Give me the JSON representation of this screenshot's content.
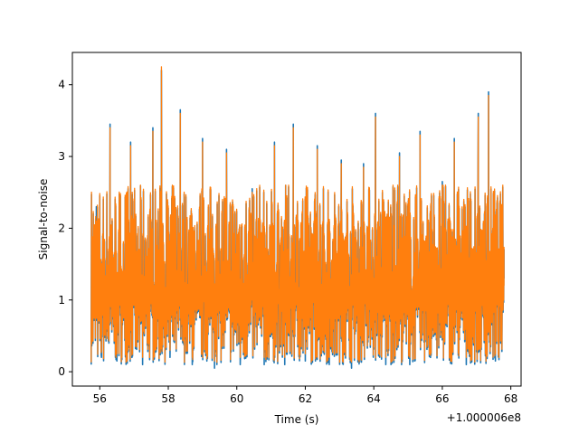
{
  "chart_data": {
    "type": "line",
    "title": "",
    "xlabel": "Time (s)",
    "ylabel": "Signal-to-noise",
    "x_offset_label": "+1.000006e8",
    "xlim": [
      55.2,
      68.3
    ],
    "ylim": [
      -0.2,
      4.45
    ],
    "xticks": [
      56,
      58,
      60,
      62,
      64,
      66,
      68
    ],
    "yticks": [
      0,
      1,
      2,
      3,
      4
    ],
    "grid": false,
    "legend": "none",
    "series": [
      {
        "color": "#1f77b4",
        "x": [
          55.75,
          55.9,
          56.05,
          56.3,
          56.5,
          56.9,
          57.25,
          57.55,
          57.8,
          58.05,
          58.35,
          58.7,
          59.0,
          59.35,
          59.7,
          60.1,
          60.45,
          60.8,
          61.1,
          61.4,
          61.65,
          62.0,
          62.35,
          62.7,
          63.05,
          63.35,
          63.7,
          64.05,
          64.35,
          64.75,
          65.05,
          65.35,
          65.65,
          66.0,
          66.35,
          66.7,
          67.05,
          67.35,
          67.55,
          67.8
        ],
        "values": [
          0.3,
          2.3,
          0.2,
          3.45,
          0.15,
          3.2,
          0.1,
          3.4,
          4.2,
          0.2,
          3.65,
          0.1,
          3.25,
          0.05,
          3.1,
          0.1,
          2.55,
          0.1,
          3.2,
          0.1,
          3.45,
          0.15,
          3.15,
          0.1,
          2.95,
          0.05,
          2.9,
          3.6,
          0.1,
          3.05,
          0.1,
          3.35,
          0.2,
          2.65,
          3.25,
          0.1,
          3.6,
          3.9,
          0.15,
          1.3
        ]
      },
      {
        "color": "#ff7f0e",
        "x": [
          55.75,
          55.9,
          56.05,
          56.3,
          56.5,
          56.9,
          57.25,
          57.55,
          57.8,
          58.05,
          58.35,
          58.7,
          59.0,
          59.35,
          59.7,
          60.1,
          60.45,
          60.8,
          61.1,
          61.4,
          61.65,
          62.0,
          62.35,
          62.7,
          63.05,
          63.35,
          63.7,
          64.05,
          64.35,
          64.75,
          65.05,
          65.35,
          65.65,
          66.0,
          66.35,
          66.7,
          67.05,
          67.35,
          67.55,
          67.8
        ],
        "values": [
          0.4,
          2.1,
          0.3,
          3.4,
          0.25,
          3.15,
          0.2,
          3.35,
          4.25,
          0.3,
          3.6,
          0.2,
          3.2,
          0.15,
          3.05,
          0.2,
          2.5,
          0.2,
          3.15,
          0.2,
          3.4,
          0.25,
          3.1,
          0.2,
          2.9,
          0.15,
          2.85,
          3.55,
          0.2,
          3.0,
          0.2,
          3.3,
          0.3,
          2.6,
          3.2,
          0.2,
          3.55,
          3.85,
          0.25,
          1.2
        ]
      }
    ]
  }
}
